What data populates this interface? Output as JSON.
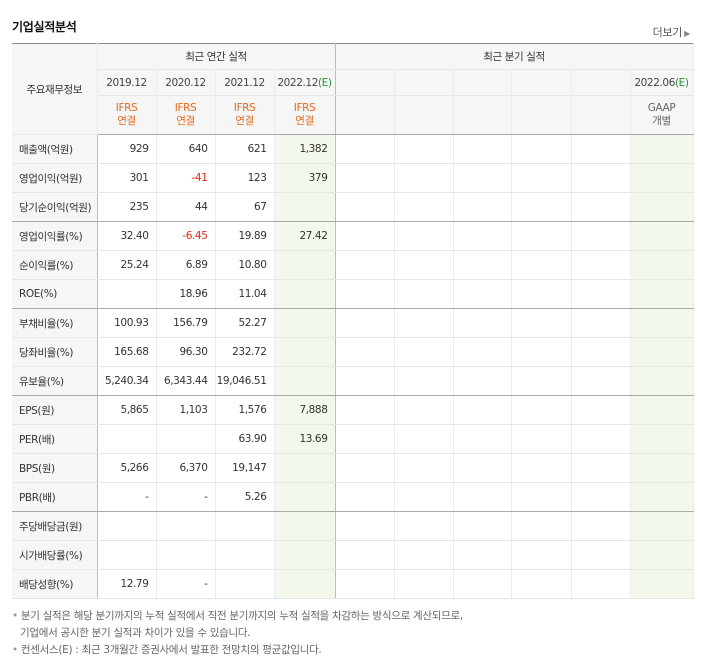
{
  "header": {
    "title": "기업실적분석",
    "more_label": "더보기"
  },
  "table": {
    "corner": "주요재무정보",
    "annual_group": "최근 연간 실적",
    "quarter_group": "최근 분기 실적",
    "annual_periods": [
      "2019.12",
      "2020.12",
      "2021.12",
      "2022.12"
    ],
    "annual_period_flags": [
      "",
      "",
      "",
      "(E)"
    ],
    "quarter_last_period": "2022.06",
    "quarter_last_flag": "(E)",
    "annual_accounting": [
      {
        "std": "IFRS",
        "basis": "연결"
      },
      {
        "std": "IFRS",
        "basis": "연결"
      },
      {
        "std": "IFRS",
        "basis": "연결"
      },
      {
        "std": "IFRS",
        "basis": "연결"
      }
    ],
    "quarter_accounting": {
      "std": "GAAP",
      "basis": "개별"
    },
    "rows": [
      {
        "label": "매출액(억원)",
        "values": [
          "929",
          "640",
          "621",
          "1,382"
        ]
      },
      {
        "label": "영업이익(억원)",
        "values": [
          "301",
          "-41",
          "123",
          "379"
        ]
      },
      {
        "label": "당기순이익(억원)",
        "values": [
          "235",
          "44",
          "67",
          ""
        ]
      },
      {
        "label": "영업이익률(%)",
        "values": [
          "32.40",
          "-6.45",
          "19.89",
          "27.42"
        ]
      },
      {
        "label": "순이익률(%)",
        "values": [
          "25.24",
          "6.89",
          "10.80",
          ""
        ]
      },
      {
        "label": "ROE(%)",
        "values": [
          "",
          "18.96",
          "11.04",
          ""
        ]
      },
      {
        "label": "부채비율(%)",
        "values": [
          "100.93",
          "156.79",
          "52.27",
          ""
        ]
      },
      {
        "label": "당좌비율(%)",
        "values": [
          "165.68",
          "96.30",
          "232.72",
          ""
        ]
      },
      {
        "label": "유보율(%)",
        "values": [
          "5,240.34",
          "6,343.44",
          "19,046.51",
          ""
        ]
      },
      {
        "label": "EPS(원)",
        "values": [
          "5,865",
          "1,103",
          "1,576",
          "7,888"
        ]
      },
      {
        "label": "PER(배)",
        "values": [
          "",
          "",
          "63.90",
          "13.69"
        ]
      },
      {
        "label": "BPS(원)",
        "values": [
          "5,266",
          "6,370",
          "19,147",
          ""
        ]
      },
      {
        "label": "PBR(배)",
        "values": [
          "-",
          "-",
          "5.26",
          ""
        ]
      },
      {
        "label": "주당배당금(원)",
        "values": [
          "",
          "",
          "",
          ""
        ]
      },
      {
        "label": "시가배당률(%)",
        "values": [
          "",
          "",
          "",
          ""
        ]
      },
      {
        "label": "배당성향(%)",
        "values": [
          "12.79",
          "-",
          "",
          ""
        ]
      }
    ]
  },
  "notes": {
    "line1": "분기 실적은 해당 분기까지의 누적 실적에서 직전 분기까지의 누적 실적을 차감하는 방식으로 계산되므로,",
    "line2": "기업에서 공시한 분기 실적과 차이가 있을 수 있습니다.",
    "line3": "컨센서스(E) : 최근 3개월간 증권사에서 발표한 전망치의 평균값입니다."
  },
  "colors": {
    "accent_orange": "#e26a1b",
    "negative_red": "#e1261c",
    "estimate_bg": "#f2f8ec"
  }
}
